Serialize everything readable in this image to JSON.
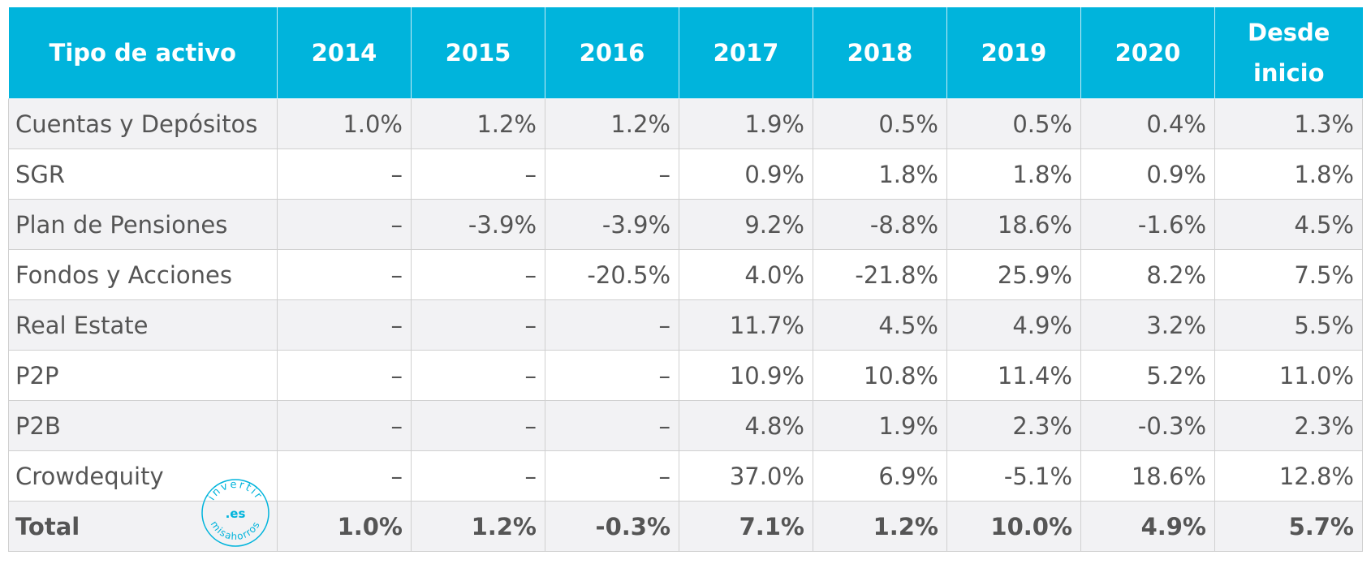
{
  "header": [
    "Tipo de activo",
    "2014",
    "2015",
    "2016",
    "2017",
    "2018",
    "2019",
    "2020",
    "Desde inicio"
  ],
  "rows": [
    [
      "Cuentas y Depósitos",
      "1.0%",
      "1.2%",
      "1.2%",
      "1.9%",
      "0.5%",
      "0.5%",
      "0.4%",
      "1.3%"
    ],
    [
      "SGR",
      "–",
      "–",
      "–",
      "0.9%",
      "1.8%",
      "1.8%",
      "0.9%",
      "1.8%"
    ],
    [
      "Plan de Pensiones",
      "–",
      "-3.9%",
      "-3.9%",
      "9.2%",
      "-8.8%",
      "18.6%",
      "-1.6%",
      "4.5%"
    ],
    [
      "Fondos y Acciones",
      "–",
      "–",
      "-20.5%",
      "4.0%",
      "-21.8%",
      "25.9%",
      "8.2%",
      "7.5%"
    ],
    [
      "Real Estate",
      "–",
      "–",
      "–",
      "11.7%",
      "4.5%",
      "4.9%",
      "3.2%",
      "5.5%"
    ],
    [
      "P2P",
      "–",
      "–",
      "–",
      "10.9%",
      "10.8%",
      "11.4%",
      "5.2%",
      "11.0%"
    ],
    [
      "P2B",
      "–",
      "–",
      "–",
      "4.8%",
      "1.9%",
      "2.3%",
      "-0.3%",
      "2.3%"
    ],
    [
      "Crowdequity",
      "–",
      "–",
      "–",
      "37.0%",
      "6.9%",
      "-5.1%",
      "18.6%",
      "12.8%"
    ]
  ],
  "total": [
    "Total",
    "1.0%",
    "1.2%",
    "-0.3%",
    "7.1%",
    "1.2%",
    "10.0%",
    "4.9%",
    "5.7%"
  ],
  "watermark": {
    "top": "invertir",
    "center": ".es",
    "bottom": "misahorros"
  },
  "colors": {
    "header_bg": "#00b4dc",
    "text": "#555555",
    "stripe": "#f2f2f4",
    "watermark": "#00b4dc"
  }
}
